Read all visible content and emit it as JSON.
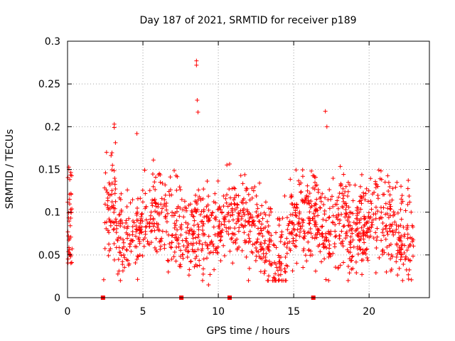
{
  "chart_data": {
    "type": "scatter",
    "title": "Day 187 of 2021, SRMTID for receiver p189",
    "xlabel": "GPS time / hours",
    "ylabel": "SRMTID / TECUs",
    "xlim": [
      0,
      24
    ],
    "ylim": [
      0,
      0.3
    ],
    "x_ticks": [
      0,
      5,
      10,
      15,
      20
    ],
    "x_tick_labels": [
      "0",
      "5",
      "10",
      "15",
      "20"
    ],
    "y_ticks": [
      0,
      0.05,
      0.1,
      0.15,
      0.2,
      0.25,
      0.3
    ],
    "y_tick_labels": [
      "0",
      "0.05",
      "0.1",
      "0.15",
      "0.2",
      "0.25",
      "0.3"
    ],
    "grid": true,
    "marker": "+",
    "color": "#ff0000",
    "outlier_points": [
      {
        "x": 2.4,
        "y": 0.021
      },
      {
        "x": 3.1,
        "y": 0.203
      },
      {
        "x": 3.1,
        "y": 0.199
      },
      {
        "x": 4.6,
        "y": 0.192
      },
      {
        "x": 8.55,
        "y": 0.277
      },
      {
        "x": 8.55,
        "y": 0.272
      },
      {
        "x": 8.6,
        "y": 0.231
      },
      {
        "x": 8.65,
        "y": 0.217
      },
      {
        "x": 9.35,
        "y": 0.015
      },
      {
        "x": 9.45,
        "y": 0.027
      },
      {
        "x": 17.1,
        "y": 0.218
      },
      {
        "x": 17.2,
        "y": 0.2
      },
      {
        "x": 18.7,
        "y": 0.029
      }
    ],
    "baseline_markers_x": [
      2.35,
      7.55,
      10.75,
      16.3
    ],
    "baseline_markers_y": 0
  }
}
